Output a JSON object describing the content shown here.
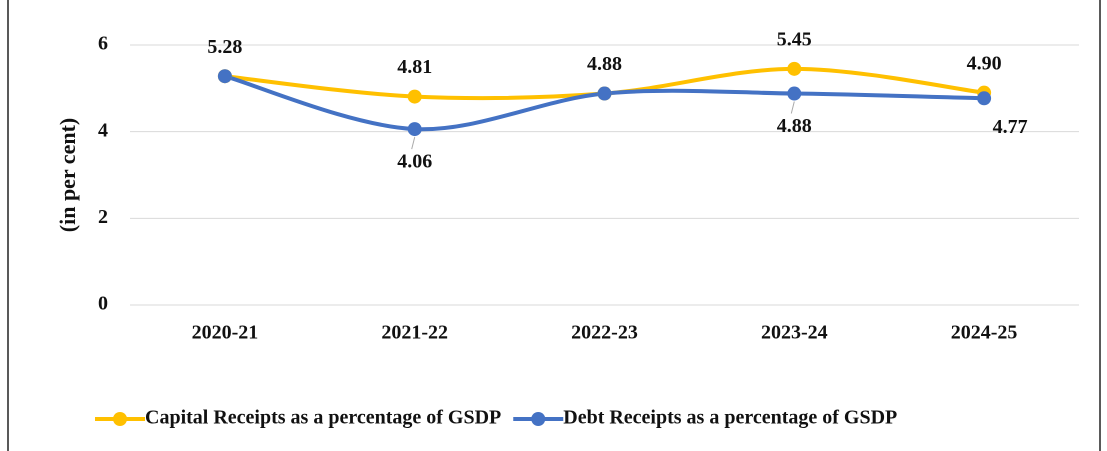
{
  "chart_data": {
    "type": "line",
    "y_label": "(in per cent)",
    "categories": [
      "2020-21",
      "2021-22",
      "2022-23",
      "2023-24",
      "2024-25"
    ],
    "series": [
      {
        "name": "Capital Receipts as a percentage of GSDP",
        "color": "#FFC000",
        "values": [
          5.28,
          4.81,
          4.88,
          5.45,
          4.9
        ],
        "value_labels": [
          "5.28",
          "4.81",
          "4.88",
          "5.45",
          "4.90"
        ]
      },
      {
        "name": "Debt Receipts as a percentage of GSDP",
        "color": "#4472C4",
        "values": [
          5.28,
          4.06,
          4.88,
          4.88,
          4.77
        ],
        "value_labels": [
          null,
          "4.06",
          null,
          "4.88",
          "4.77"
        ]
      }
    ],
    "ylim": [
      0,
      6
    ],
    "yticks": [
      0,
      2,
      4,
      6
    ],
    "grid": true,
    "legend": "bottom"
  }
}
